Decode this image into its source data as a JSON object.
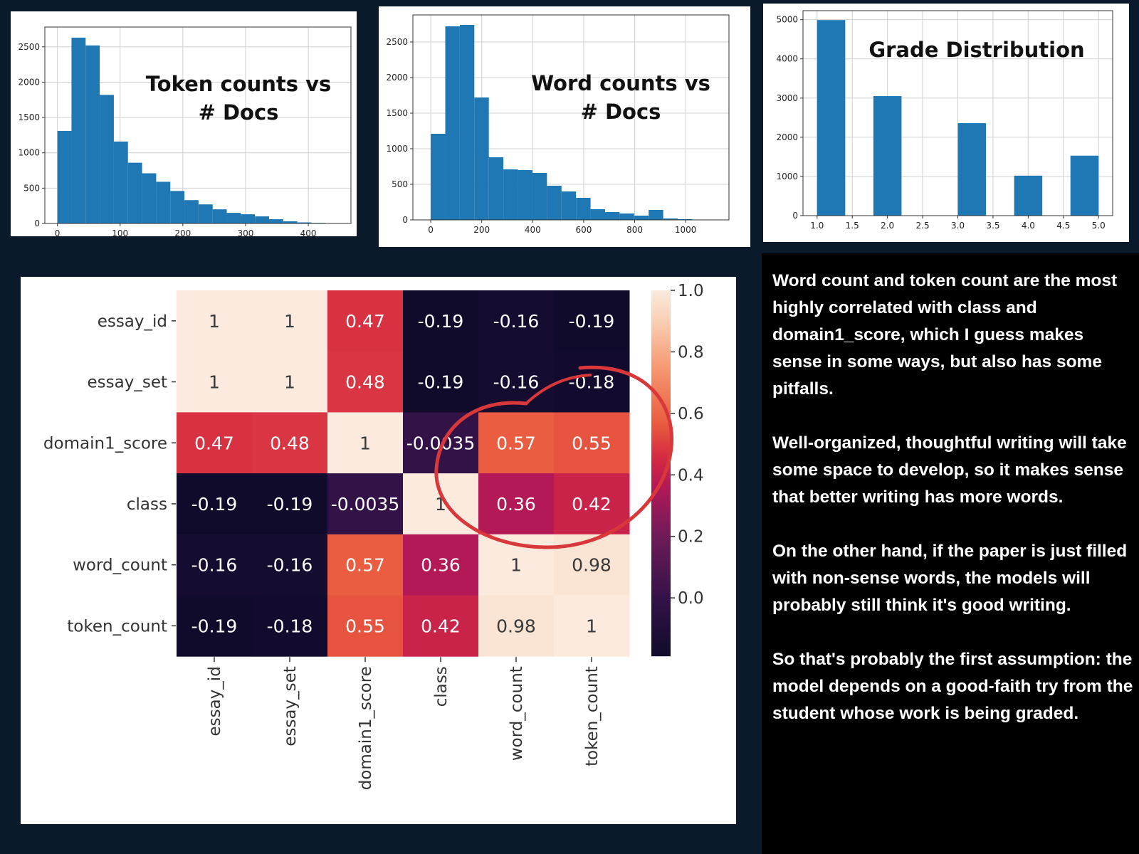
{
  "chart_data": [
    {
      "type": "bar",
      "title": "Token counts vs # Docs",
      "title_lines": [
        "Token counts vs",
        "# Docs"
      ],
      "xlabel": "",
      "ylabel": "",
      "bin_edges": [
        0,
        22.5,
        45,
        67.5,
        90,
        112.5,
        135,
        157.5,
        180,
        202.5,
        225,
        247.5,
        270,
        292.5,
        315,
        337.5,
        360,
        382.5,
        405,
        427.5,
        450
      ],
      "values": [
        1310,
        2630,
        2520,
        1820,
        1160,
        860,
        710,
        590,
        460,
        330,
        270,
        200,
        150,
        130,
        100,
        60,
        30,
        15,
        8,
        3
      ],
      "xlim": [
        -20,
        468
      ],
      "ylim": [
        0,
        2780
      ],
      "xticks": [
        0,
        100,
        200,
        300,
        400
      ],
      "yticks": [
        0,
        500,
        1000,
        1500,
        2000,
        2500
      ],
      "color": "#1f77b4",
      "grid": true
    },
    {
      "type": "bar",
      "title": "Word counts vs # Docs",
      "title_lines": [
        "Word counts vs",
        "# Docs"
      ],
      "xlabel": "",
      "ylabel": "",
      "bin_edges": [
        0,
        57,
        114,
        171,
        228,
        285,
        342,
        399,
        456,
        513,
        570,
        627,
        684,
        741,
        798,
        855,
        912,
        969,
        1026,
        1083,
        1140
      ],
      "values": [
        1210,
        2720,
        2740,
        1720,
        880,
        710,
        700,
        660,
        480,
        400,
        310,
        150,
        110,
        90,
        60,
        140,
        20,
        10,
        5,
        3
      ],
      "xlim": [
        -70,
        1170
      ],
      "ylim": [
        0,
        2880
      ],
      "xticks": [
        0,
        200,
        400,
        600,
        800,
        1000
      ],
      "yticks": [
        0,
        500,
        1000,
        1500,
        2000,
        2500
      ],
      "color": "#1f77b4",
      "grid": true
    },
    {
      "type": "bar",
      "title": "Grade Distribution",
      "title_lines": [
        "Grade Distribution"
      ],
      "xlabel": "",
      "ylabel": "",
      "bin_edges": [
        1.0,
        1.4,
        1.8,
        2.2,
        2.6,
        3.0,
        3.4,
        3.8,
        4.2,
        4.6,
        5.0
      ],
      "values": [
        4990,
        0,
        3050,
        0,
        0,
        2360,
        0,
        1020,
        0,
        1530
      ],
      "xlim": [
        0.8,
        5.2
      ],
      "ylim": [
        0,
        5230
      ],
      "xticks": [
        1.0,
        1.5,
        2.0,
        2.5,
        3.0,
        3.5,
        4.0,
        4.5,
        5.0
      ],
      "yticks": [
        0,
        1000,
        2000,
        3000,
        4000,
        5000
      ],
      "color": "#1f77b4",
      "grid": true
    },
    {
      "type": "heatmap",
      "labels": [
        "essay_id",
        "essay_set",
        "domain1_score",
        "class",
        "word_count",
        "token_count"
      ],
      "matrix": [
        [
          1,
          1,
          0.47,
          -0.19,
          -0.16,
          -0.19
        ],
        [
          1,
          1,
          0.48,
          -0.19,
          -0.16,
          -0.18
        ],
        [
          0.47,
          0.48,
          1,
          -0.0035,
          0.57,
          0.55
        ],
        [
          -0.19,
          -0.19,
          -0.0035,
          1,
          0.36,
          0.42
        ],
        [
          -0.16,
          -0.16,
          0.57,
          0.36,
          1,
          0.98
        ],
        [
          -0.19,
          -0.18,
          0.55,
          0.42,
          0.98,
          1
        ]
      ],
      "colorbar_ticks": [
        0.0,
        0.2,
        0.4,
        0.6,
        0.8,
        1.0
      ],
      "vmin": -0.19,
      "vmax": 1.0,
      "annotation": "red ellipse circling word_count and token_count correlations with domain1_score and class",
      "annotation_color": "#d9383a"
    }
  ],
  "commentary": [
    "Word count and token count are the most highly correlated with class and domain1_score, which I guess makes sense in some ways, but also has some pitfalls.",
    "Well-organized, thoughtful writing will take some space to develop, so it makes sense that better writing has more words.",
    "On the other hand, if the paper is just filled with non-sense words, the models will probably still think it's good writing.",
    "So that's probably the first assumption: the model depends on a good-faith try from the student whose work is being graded."
  ]
}
